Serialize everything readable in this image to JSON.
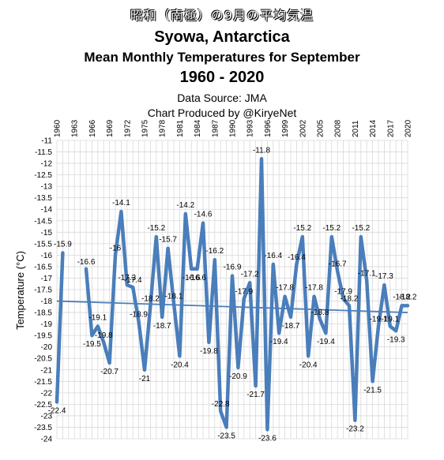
{
  "title_jp": "昭和（南極）の9月の平均気温",
  "title": "Syowa, Antarctica",
  "subtitle": "Mean Monthly Temperatures for September",
  "period": "1960 - 2020",
  "source": "Data Source: JMA",
  "producer": "Chart Produced by @KiryeNet",
  "chart_data": {
    "type": "line",
    "title": "Syowa, Antarctica",
    "xlabel": "",
    "ylabel": "Temperature (°C)",
    "ylim": [
      -24,
      -11
    ],
    "ytick_step": 0.5,
    "x_tick_labels": [
      "1960",
      "1963",
      "1966",
      "1969",
      "1972",
      "1975",
      "1978",
      "1981",
      "1984",
      "1987",
      "1990",
      "1993",
      "1996",
      "1999",
      "2002",
      "2005",
      "2008",
      "2011",
      "2014",
      "2017",
      "2020"
    ],
    "grid": true,
    "legend": "none",
    "series": [
      {
        "color": "#4a7ebb",
        "x": [
          1960,
          1961,
          1965,
          1966,
          1967,
          1968,
          1969,
          1970,
          1971,
          1972,
          1973,
          1974,
          1975,
          1976,
          1977,
          1978,
          1979,
          1980,
          1981,
          1982,
          1983,
          1984,
          1985,
          1986,
          1987,
          1988,
          1989,
          1990,
          1991,
          1992,
          1993,
          1994,
          1995,
          1996,
          1997,
          1998,
          1999,
          2000,
          2001,
          2002,
          2003,
          2004,
          2005,
          2006,
          2007,
          2008,
          2009,
          2010,
          2011,
          2012,
          2013,
          2014,
          2015,
          2016,
          2017,
          2018,
          2019,
          2020
        ],
        "values": [
          -22.4,
          -15.9,
          -16.6,
          -19.5,
          -19.1,
          -19.8,
          -20.7,
          -16,
          -14.1,
          -17.3,
          -17.4,
          -18.9,
          -21,
          -18.2,
          -15.2,
          -18.7,
          -15.7,
          -18.1,
          -20.4,
          -14.2,
          -16.6,
          -16.6,
          -14.6,
          -19.8,
          -16.2,
          -22.8,
          -23.5,
          -16.9,
          -20.9,
          -17.9,
          -17.2,
          -21.7,
          -11.8,
          -23.6,
          -16.4,
          -19.4,
          -17.8,
          -18.7,
          -16.4,
          -15.2,
          -20.4,
          -17.8,
          -18.8,
          -19.4,
          -15.2,
          -16.7,
          -17.9,
          -18.2,
          -23.2,
          -15.2,
          -17.1,
          -21.5,
          -19.1,
          -17.3,
          -19.1,
          -19.3,
          -18.2,
          -18.2
        ]
      },
      {
        "name": "trend",
        "color": "#4a7ebb",
        "x": [
          1960,
          2020
        ],
        "values": [
          -18.0,
          -18.5
        ]
      }
    ],
    "data_labels": [
      "-22.4",
      "-15.9",
      "-16.6",
      "-19.5",
      "-19.1",
      "-19.8",
      "-20.7",
      "-16",
      "-14.1",
      "-17.3",
      "-17.4",
      "-18.9",
      "-21",
      "-18.2",
      "-15.2",
      "-18.7",
      "-15.7",
      "-18.1",
      "-20.4",
      "-14.2",
      "-16.6",
      "-16.6",
      "-14.6",
      "-19.8",
      "-16.2",
      "-22.8",
      "-23.5",
      "-16.9",
      "-20.9",
      "-17.9",
      "-17.2",
      "-21.7",
      "-11.8",
      "-23.6",
      "-16.4",
      "-19.4",
      "-17.8",
      "-18.7",
      "-16.4",
      "-15.2",
      "-20.4",
      "-17.8",
      "-18.8",
      "-19.4",
      "-15.2",
      "-16.7",
      "-17.9",
      "-18.2",
      "-23.2",
      "-15.2",
      "-17.1",
      "-21.5",
      "-19.1",
      "-17.3",
      "-19.1",
      "-19.3",
      "-18.2",
      "-18.2"
    ]
  }
}
